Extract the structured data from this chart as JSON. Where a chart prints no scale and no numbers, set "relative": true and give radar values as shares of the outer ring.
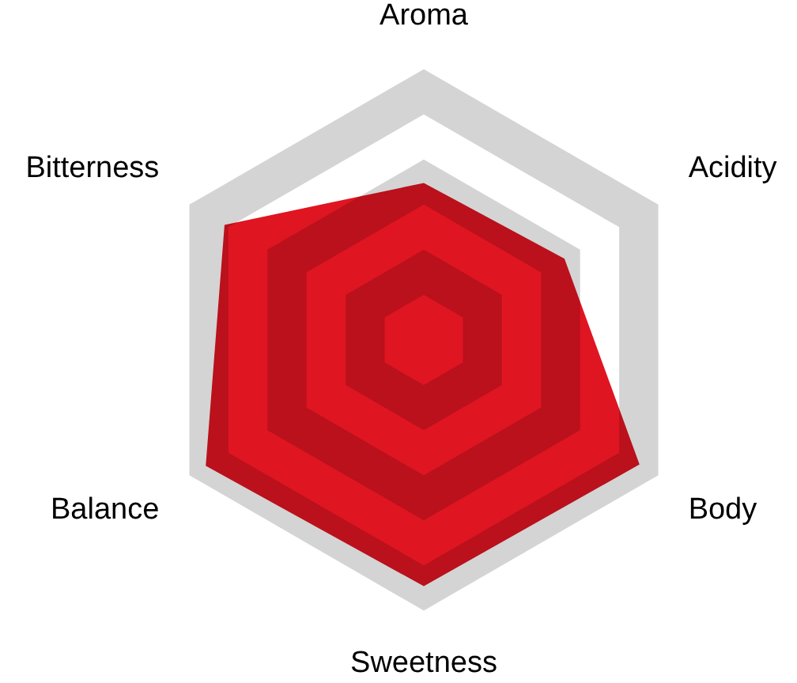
{
  "chart_data": {
    "type": "radar",
    "categories": [
      "Aroma",
      "Acidity",
      "Body",
      "Sweetness",
      "Balance",
      "Bitterness"
    ],
    "series": [
      {
        "color": "#e01522",
        "values": [
          0.58,
          0.6,
          0.92,
          0.91,
          0.93,
          0.85
        ]
      }
    ],
    "relative": true,
    "grid": true
  }
}
